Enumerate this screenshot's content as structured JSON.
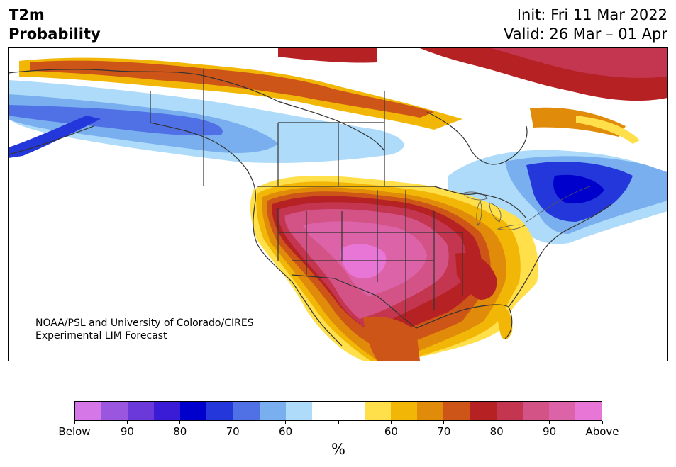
{
  "header": {
    "variable": "T2m",
    "metric": "Probability",
    "init": "Init: Fri 11 Mar 2022",
    "valid": "Valid: 26 Mar – 01 Apr"
  },
  "credit": {
    "line1": "NOAA/PSL and University of Colorado/CIRES",
    "line2": "Experimental LIM Forecast"
  },
  "colorbar": {
    "unit": "%",
    "colors": [
      "#d677e8",
      "#9a56de",
      "#6b39d9",
      "#3a1bd6",
      "#0000cc",
      "#2437db",
      "#5070e6",
      "#7aafef",
      "#addbf9",
      "#ffffff",
      "#ffdf4a",
      "#f2b706",
      "#e08b0a",
      "#cc5517",
      "#b62124",
      "#c4364f",
      "#d35387",
      "#dc63a8",
      "#e876d6"
    ],
    "labels": [
      "Below",
      "90",
      "80",
      "70",
      "60",
      "",
      "60",
      "70",
      "80",
      "90",
      "Above"
    ]
  }
}
